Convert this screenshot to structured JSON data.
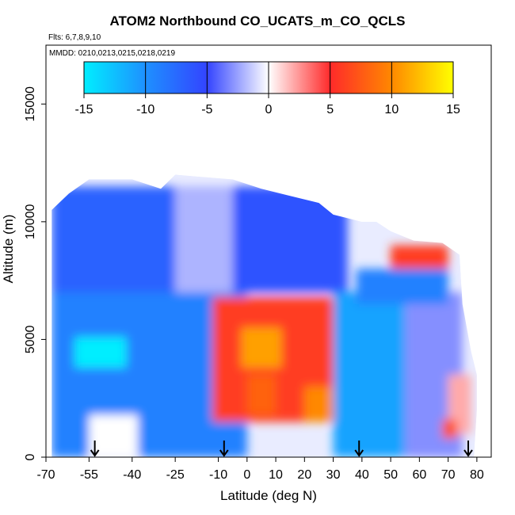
{
  "chart_data": {
    "type": "heatmap",
    "title": "ATOM2 Northbound CO_UCATS_m_CO_QCLS",
    "subtitle_flights": "Flts: 6,7,8,9,10",
    "subtitle_dates": "MMDD: 0210,0213,0215,0218,0219",
    "xlabel": "Latitude (deg N)",
    "ylabel": "Altitude (m)",
    "xlim": [
      -70,
      85
    ],
    "ylim": [
      0,
      17500
    ],
    "x_tick_labels": [
      "-70",
      "-55",
      "-40",
      "-25",
      "-10",
      "0",
      "10",
      "20",
      "30",
      "40",
      "50",
      "60",
      "70",
      "80"
    ],
    "y_tick_labels": [
      "0",
      "5000",
      "10000",
      "15000"
    ],
    "colorbar": {
      "range": [
        -15,
        15
      ],
      "tick_labels": [
        "-15",
        "-10",
        "-5",
        "0",
        "5",
        "10",
        "15"
      ],
      "colors": [
        "#00eeff",
        "#1e90ff",
        "#3344ff",
        "#ffffff",
        "#ff2a2a",
        "#ff8800",
        "#ffff00"
      ]
    },
    "markers": {
      "description": "arrows at profile latitudes",
      "latitudes": [
        -53,
        -8,
        39,
        77
      ]
    },
    "regions": [
      {
        "lat": [
          -68,
          0
        ],
        "alt": [
          0,
          7000
        ],
        "value": -9
      },
      {
        "lat": [
          -60,
          -42
        ],
        "alt": [
          3800,
          5100
        ],
        "value": -15
      },
      {
        "lat": [
          -55,
          -38
        ],
        "alt": [
          0,
          1800
        ],
        "value": 0
      },
      {
        "lat": [
          -68,
          -25
        ],
        "alt": [
          7000,
          11500
        ],
        "value": -7
      },
      {
        "lat": [
          -25,
          -5
        ],
        "alt": [
          7000,
          11500
        ],
        "value": -2
      },
      {
        "lat": [
          -5,
          35
        ],
        "alt": [
          7000,
          11500
        ],
        "value": -6
      },
      {
        "lat": [
          -12,
          30
        ],
        "alt": [
          1500,
          6800
        ],
        "value": 6
      },
      {
        "lat": [
          -2,
          12
        ],
        "alt": [
          3800,
          5500
        ],
        "value": 11
      },
      {
        "lat": [
          0,
          10
        ],
        "alt": [
          1800,
          3500
        ],
        "value": 8
      },
      {
        "lat": [
          20,
          30
        ],
        "alt": [
          1500,
          3000
        ],
        "value": 10
      },
      {
        "lat": [
          30,
          55
        ],
        "alt": [
          0,
          7000
        ],
        "value": -11
      },
      {
        "lat": [
          55,
          75
        ],
        "alt": [
          0,
          7000
        ],
        "value": -3
      },
      {
        "lat": [
          70,
          78
        ],
        "alt": [
          1000,
          3500
        ],
        "value": 2
      },
      {
        "lat": [
          50,
          70
        ],
        "alt": [
          8000,
          9000
        ],
        "value": 6
      },
      {
        "lat": [
          38,
          70
        ],
        "alt": [
          6500,
          8000
        ],
        "value": -9
      },
      {
        "lat": [
          68,
          73
        ],
        "alt": [
          800,
          1600
        ],
        "value": 7
      }
    ]
  }
}
